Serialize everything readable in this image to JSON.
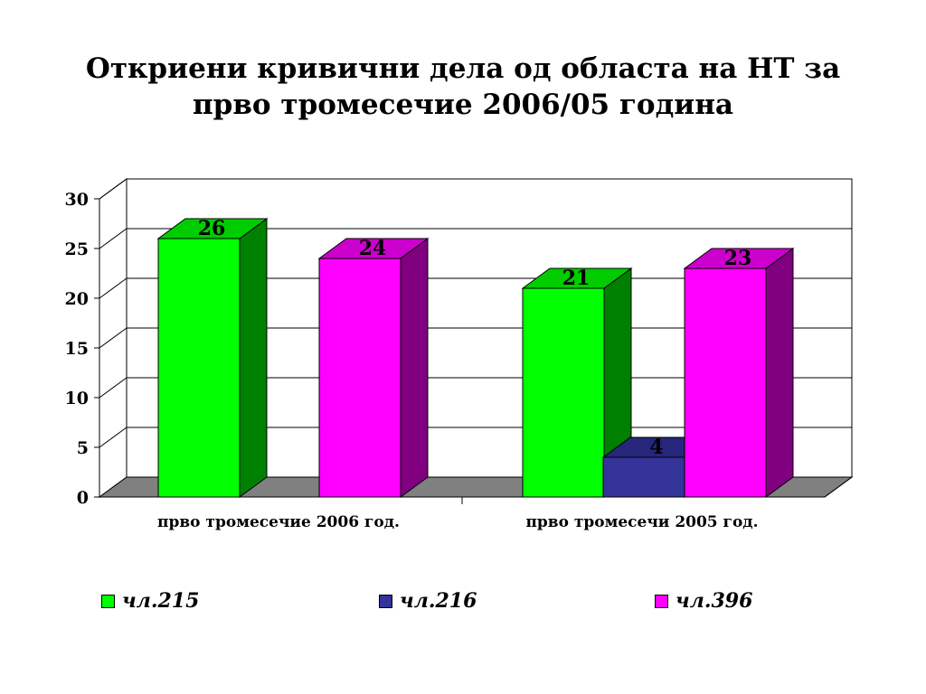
{
  "chart_data": {
    "type": "bar",
    "title_line1": "Откриени кривични дела од областа на НТ за",
    "title_line2": "прво тромесечие 2006/05 година",
    "categories": [
      "прво тромесечие 2006 год.",
      "прво тромесечи 2005 год."
    ],
    "series": [
      {
        "name": "чл.215",
        "values": [
          26,
          21
        ],
        "color": "#00ff00",
        "dark": "#008000",
        "top": "#00cc00"
      },
      {
        "name": "чл.216",
        "values": [
          0,
          4
        ],
        "color": "#333399",
        "dark": "#1f1f66",
        "top": "#26267a"
      },
      {
        "name": "чл.396",
        "values": [
          24,
          23
        ],
        "color": "#ff00ff",
        "dark": "#800080",
        "top": "#cc00cc"
      }
    ],
    "ylim": [
      0,
      30
    ],
    "yticks": [
      "0",
      "5",
      "10",
      "15",
      "20",
      "25",
      "30"
    ],
    "grid": true,
    "legend": "bottom"
  }
}
